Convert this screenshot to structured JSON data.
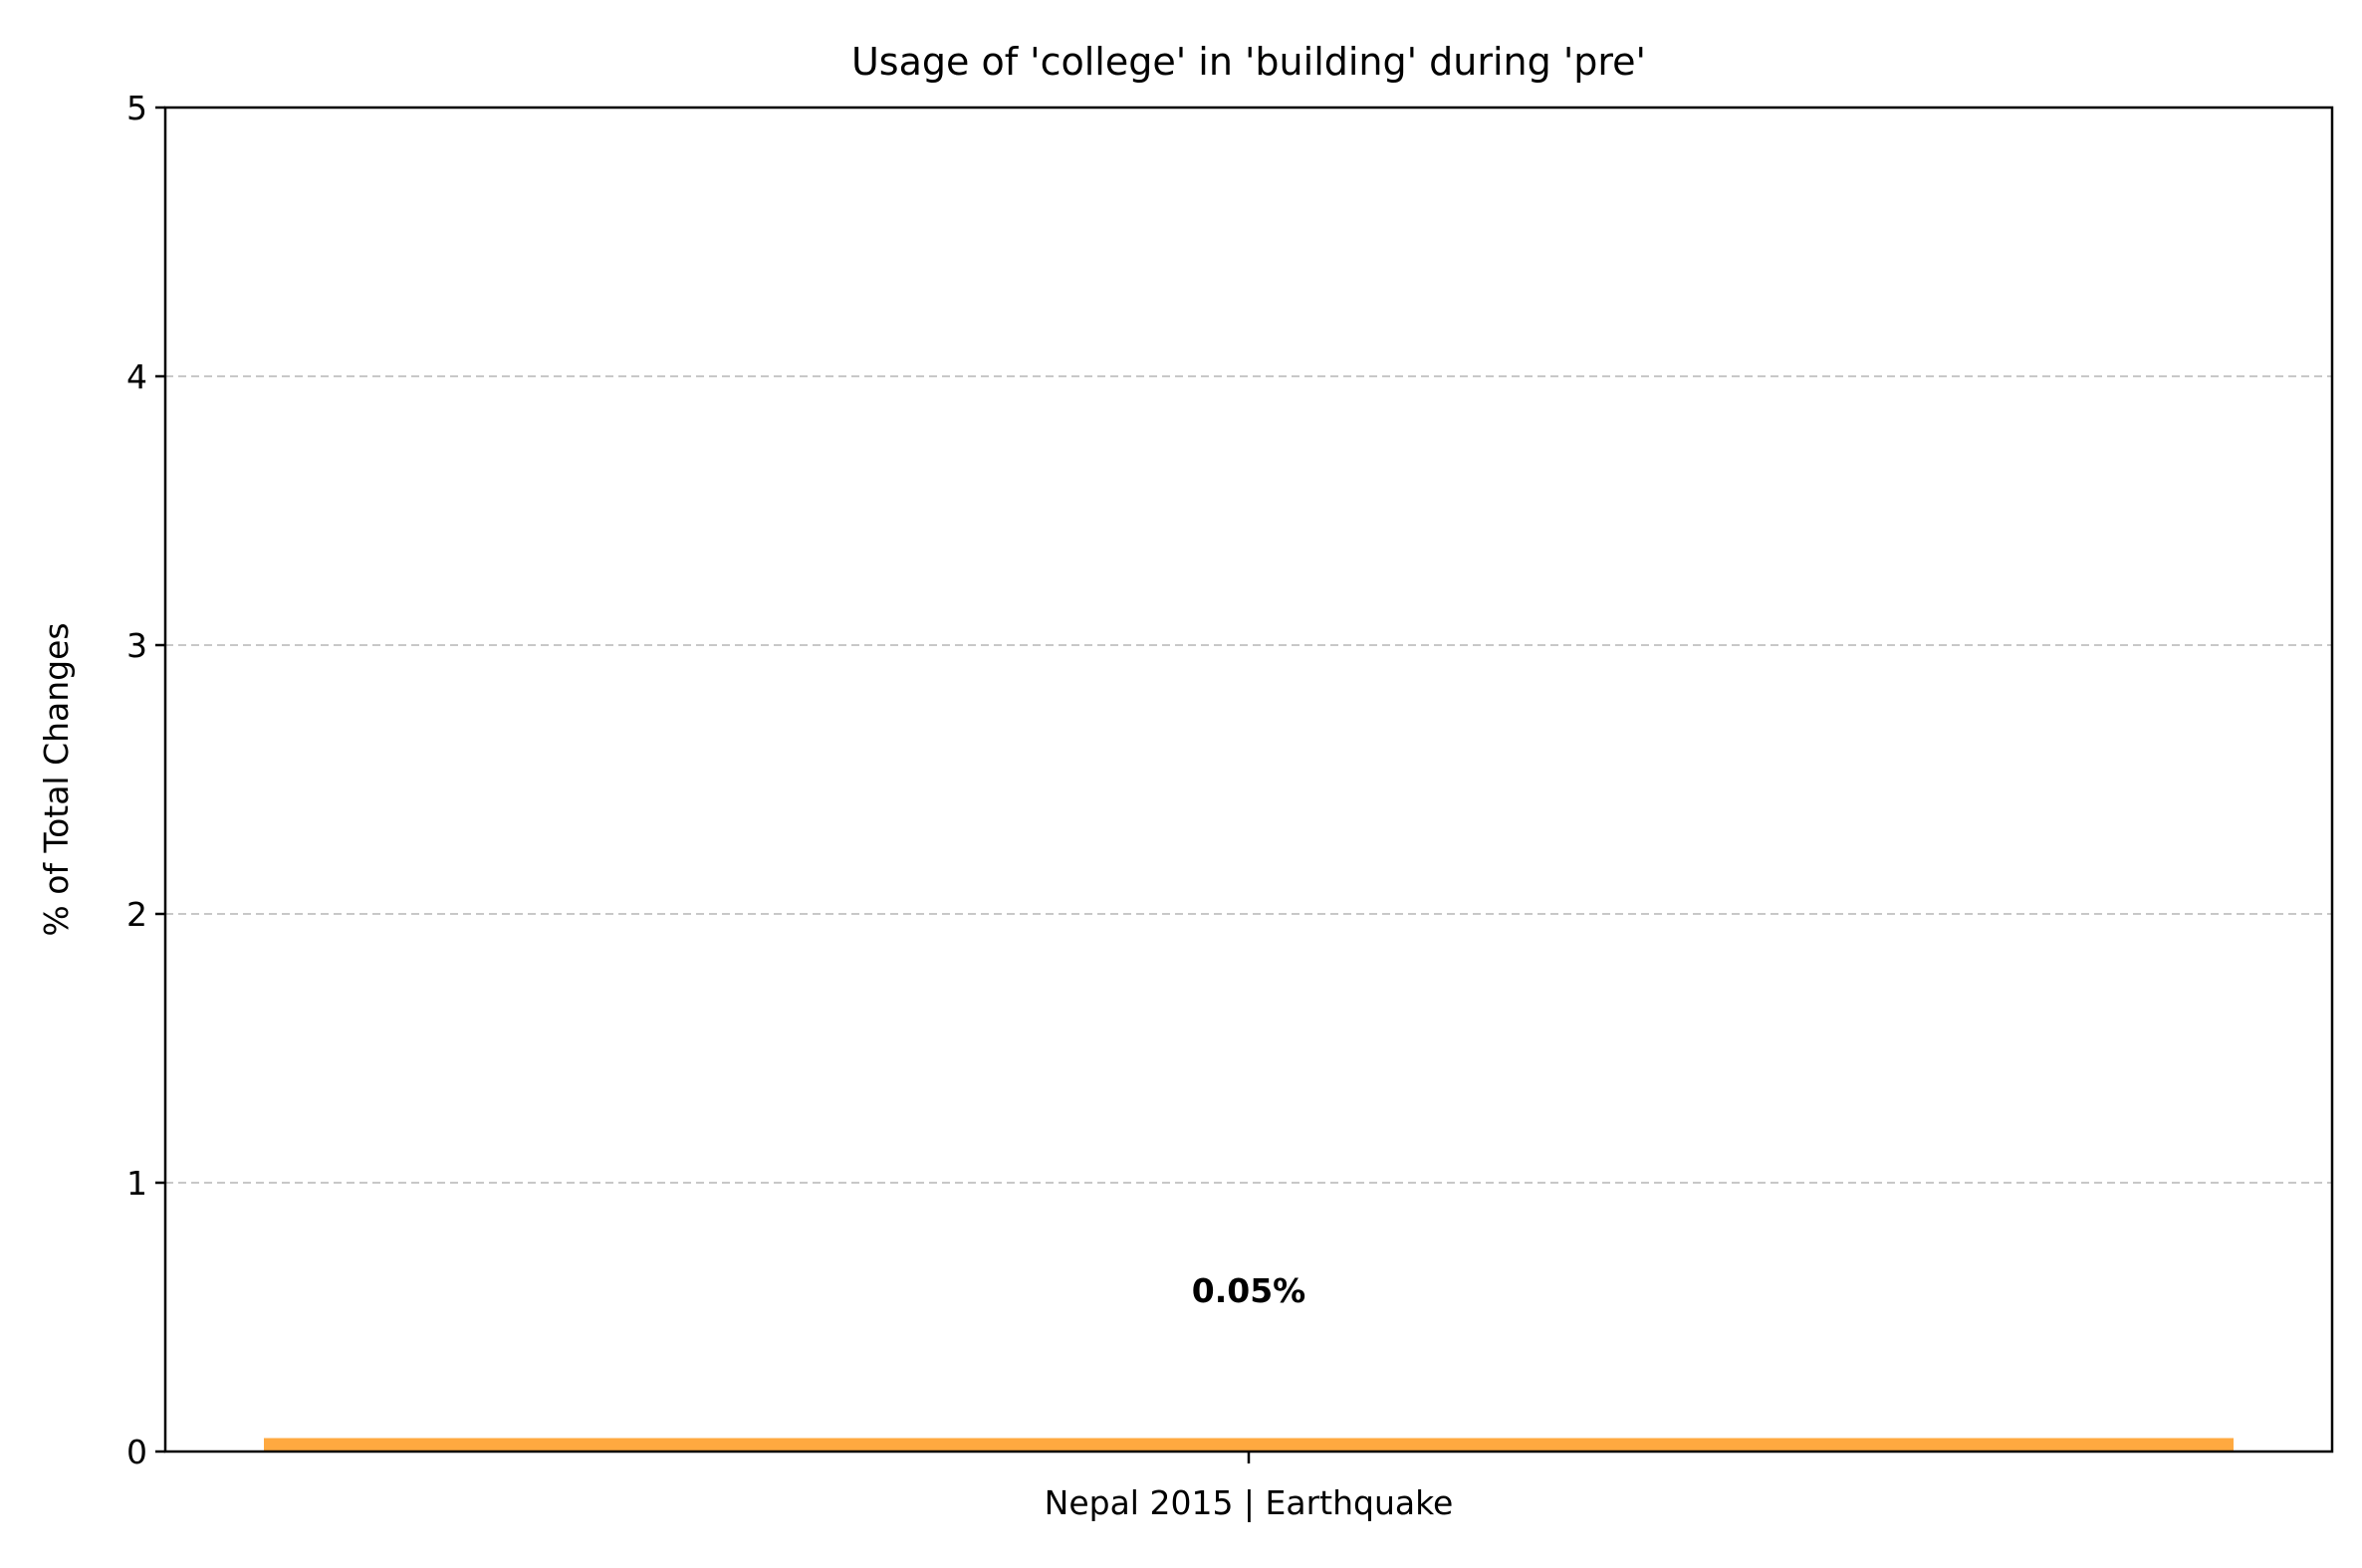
{
  "chart_data": {
    "type": "bar",
    "title": "Usage of 'college' in 'building' during 'pre'",
    "xlabel": "",
    "ylabel": "% of Total Changes",
    "categories": [
      "Nepal 2015 | Earthquake"
    ],
    "values": [
      0.05
    ],
    "data_labels": [
      "0.05%"
    ],
    "ylim": [
      0,
      5
    ],
    "yticks": [
      "0",
      "1",
      "2",
      "3",
      "4",
      "5"
    ],
    "grid": "y-dashed",
    "colors": {
      "bar": "#ffa940",
      "grid": "#c8c8c8",
      "axis": "#000000"
    }
  }
}
